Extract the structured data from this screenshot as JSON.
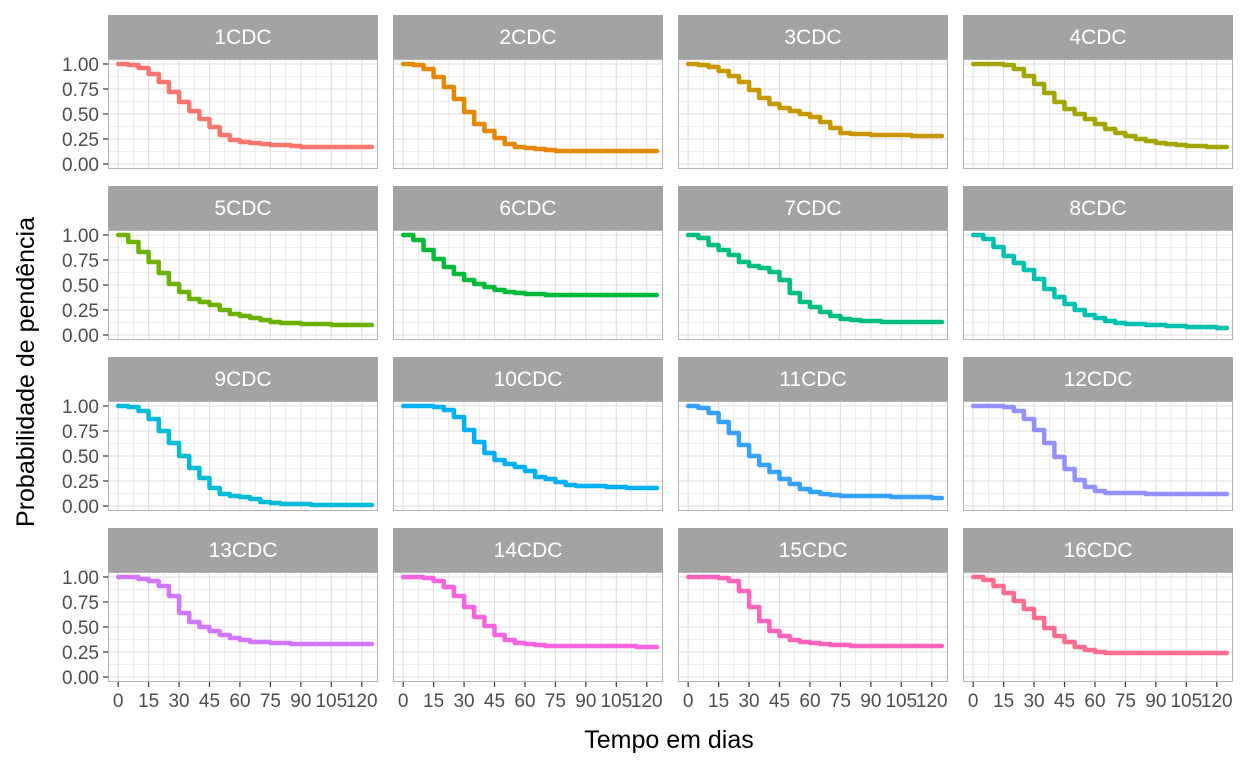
{
  "chart_data": {
    "type": "line",
    "xlabel": "Tempo em dias",
    "ylabel": "Probabilidade de pendência",
    "xlim": [
      -5,
      128
    ],
    "ylim": [
      -0.05,
      1.05
    ],
    "x_ticks": [
      0,
      15,
      30,
      45,
      60,
      75,
      90,
      105,
      120
    ],
    "x_tick_labels": [
      "0",
      "15",
      "30",
      "45",
      "60",
      "75",
      "90",
      "105",
      "120"
    ],
    "y_ticks": [
      0,
      0.25,
      0.5,
      0.75,
      1.0
    ],
    "y_tick_labels": [
      "0.00",
      "0.25",
      "0.50",
      "0.75",
      "1.00"
    ],
    "grid": true,
    "legend": "none",
    "panel_background": "#ffffff",
    "panel_border_color": "#b3b3b3",
    "strip_fill": "#a3a3a3",
    "grid_color": "#dedede",
    "panels": [
      {
        "name": "1CDC",
        "color": "#F8766D",
        "x": [
          0,
          5,
          10,
          15,
          20,
          25,
          30,
          35,
          40,
          45,
          50,
          55,
          60,
          65,
          70,
          75,
          80,
          85,
          90,
          95,
          100,
          105,
          110,
          115,
          120,
          125
        ],
        "y": [
          1.0,
          0.99,
          0.96,
          0.9,
          0.82,
          0.72,
          0.62,
          0.53,
          0.45,
          0.37,
          0.29,
          0.24,
          0.22,
          0.21,
          0.2,
          0.19,
          0.19,
          0.18,
          0.17,
          0.17,
          0.17,
          0.17,
          0.17,
          0.17,
          0.17,
          0.17
        ]
      },
      {
        "name": "2CDC",
        "color": "#E58700",
        "x": [
          0,
          5,
          10,
          15,
          20,
          25,
          30,
          35,
          40,
          45,
          50,
          55,
          60,
          65,
          70,
          75,
          80,
          85,
          90,
          95,
          100,
          105,
          110,
          115,
          120,
          125
        ],
        "y": [
          1.0,
          0.99,
          0.95,
          0.87,
          0.77,
          0.65,
          0.52,
          0.4,
          0.33,
          0.26,
          0.2,
          0.17,
          0.16,
          0.15,
          0.14,
          0.13,
          0.13,
          0.13,
          0.13,
          0.13,
          0.13,
          0.13,
          0.13,
          0.13,
          0.13,
          0.13
        ]
      },
      {
        "name": "3CDC",
        "color": "#C99800",
        "x": [
          0,
          5,
          10,
          15,
          20,
          25,
          30,
          35,
          40,
          45,
          50,
          55,
          60,
          65,
          70,
          75,
          80,
          85,
          90,
          95,
          100,
          105,
          110,
          115,
          120,
          125
        ],
        "y": [
          1.0,
          0.99,
          0.97,
          0.93,
          0.88,
          0.82,
          0.74,
          0.66,
          0.6,
          0.56,
          0.53,
          0.5,
          0.47,
          0.42,
          0.36,
          0.31,
          0.3,
          0.3,
          0.29,
          0.29,
          0.29,
          0.29,
          0.28,
          0.28,
          0.28,
          0.28
        ]
      },
      {
        "name": "4CDC",
        "color": "#A3A500",
        "x": [
          0,
          5,
          10,
          15,
          20,
          25,
          30,
          35,
          40,
          45,
          50,
          55,
          60,
          65,
          70,
          75,
          80,
          85,
          90,
          95,
          100,
          105,
          110,
          115,
          120,
          125
        ],
        "y": [
          1.0,
          1.0,
          1.0,
          0.99,
          0.95,
          0.88,
          0.8,
          0.71,
          0.62,
          0.55,
          0.5,
          0.45,
          0.4,
          0.35,
          0.31,
          0.28,
          0.25,
          0.23,
          0.21,
          0.2,
          0.19,
          0.18,
          0.18,
          0.17,
          0.17,
          0.17
        ]
      },
      {
        "name": "5CDC",
        "color": "#6BB100",
        "x": [
          0,
          5,
          10,
          15,
          20,
          25,
          30,
          35,
          40,
          45,
          50,
          55,
          60,
          65,
          70,
          75,
          80,
          85,
          90,
          95,
          100,
          105,
          110,
          115,
          120,
          125
        ],
        "y": [
          1.0,
          0.93,
          0.83,
          0.73,
          0.62,
          0.51,
          0.43,
          0.36,
          0.33,
          0.3,
          0.25,
          0.21,
          0.19,
          0.17,
          0.15,
          0.13,
          0.12,
          0.12,
          0.11,
          0.11,
          0.11,
          0.1,
          0.1,
          0.1,
          0.1,
          0.1
        ]
      },
      {
        "name": "6CDC",
        "color": "#00BA38",
        "x": [
          0,
          5,
          10,
          15,
          20,
          25,
          30,
          35,
          40,
          45,
          50,
          55,
          60,
          65,
          70,
          75,
          80,
          85,
          90,
          95,
          100,
          105,
          110,
          115,
          120,
          125
        ],
        "y": [
          1.0,
          0.95,
          0.85,
          0.76,
          0.68,
          0.61,
          0.55,
          0.51,
          0.48,
          0.45,
          0.43,
          0.42,
          0.41,
          0.41,
          0.4,
          0.4,
          0.4,
          0.4,
          0.4,
          0.4,
          0.4,
          0.4,
          0.4,
          0.4,
          0.4,
          0.4
        ]
      },
      {
        "name": "7CDC",
        "color": "#00BF7D",
        "x": [
          0,
          5,
          10,
          15,
          20,
          25,
          30,
          35,
          40,
          45,
          50,
          55,
          60,
          65,
          70,
          75,
          80,
          85,
          90,
          95,
          100,
          105,
          110,
          115,
          120,
          125
        ],
        "y": [
          1.0,
          0.97,
          0.9,
          0.85,
          0.8,
          0.73,
          0.69,
          0.67,
          0.63,
          0.55,
          0.42,
          0.33,
          0.28,
          0.23,
          0.19,
          0.16,
          0.15,
          0.14,
          0.14,
          0.13,
          0.13,
          0.13,
          0.13,
          0.13,
          0.13,
          0.13
        ]
      },
      {
        "name": "8CDC",
        "color": "#00C0AF",
        "x": [
          0,
          5,
          10,
          15,
          20,
          25,
          30,
          35,
          40,
          45,
          50,
          55,
          60,
          65,
          70,
          75,
          80,
          85,
          90,
          95,
          100,
          105,
          110,
          115,
          120,
          125
        ],
        "y": [
          1.0,
          0.96,
          0.88,
          0.79,
          0.72,
          0.65,
          0.56,
          0.46,
          0.38,
          0.31,
          0.25,
          0.2,
          0.17,
          0.14,
          0.12,
          0.11,
          0.11,
          0.1,
          0.1,
          0.09,
          0.09,
          0.08,
          0.08,
          0.08,
          0.07,
          0.07
        ]
      },
      {
        "name": "9CDC",
        "color": "#00BCD8",
        "x": [
          0,
          5,
          10,
          15,
          20,
          25,
          30,
          35,
          40,
          45,
          50,
          55,
          60,
          65,
          70,
          75,
          80,
          85,
          90,
          95,
          100,
          105,
          110,
          115,
          120,
          125
        ],
        "y": [
          1.0,
          0.99,
          0.95,
          0.87,
          0.75,
          0.63,
          0.5,
          0.38,
          0.28,
          0.18,
          0.12,
          0.1,
          0.09,
          0.07,
          0.04,
          0.03,
          0.02,
          0.02,
          0.02,
          0.01,
          0.01,
          0.01,
          0.01,
          0.01,
          0.01,
          0.01
        ]
      },
      {
        "name": "10CDC",
        "color": "#00B0F6",
        "x": [
          0,
          5,
          10,
          15,
          20,
          25,
          30,
          35,
          40,
          45,
          50,
          55,
          60,
          65,
          70,
          75,
          80,
          85,
          90,
          95,
          100,
          105,
          110,
          115,
          120,
          125
        ],
        "y": [
          1.0,
          1.0,
          1.0,
          0.99,
          0.96,
          0.89,
          0.76,
          0.64,
          0.53,
          0.46,
          0.42,
          0.39,
          0.35,
          0.29,
          0.27,
          0.24,
          0.21,
          0.2,
          0.2,
          0.2,
          0.19,
          0.19,
          0.18,
          0.18,
          0.18,
          0.18
        ]
      },
      {
        "name": "11CDC",
        "color": "#35A2FF",
        "x": [
          0,
          5,
          10,
          15,
          20,
          25,
          30,
          35,
          40,
          45,
          50,
          55,
          60,
          65,
          70,
          75,
          80,
          85,
          90,
          95,
          100,
          105,
          110,
          115,
          120,
          125
        ],
        "y": [
          1.0,
          0.98,
          0.93,
          0.84,
          0.73,
          0.61,
          0.5,
          0.41,
          0.34,
          0.27,
          0.22,
          0.17,
          0.14,
          0.12,
          0.11,
          0.1,
          0.1,
          0.1,
          0.1,
          0.1,
          0.09,
          0.09,
          0.09,
          0.09,
          0.08,
          0.08
        ]
      },
      {
        "name": "12CDC",
        "color": "#9590FF",
        "x": [
          0,
          5,
          10,
          15,
          20,
          25,
          30,
          35,
          40,
          45,
          50,
          55,
          60,
          65,
          70,
          75,
          80,
          85,
          90,
          95,
          100,
          105,
          110,
          115,
          120,
          125
        ],
        "y": [
          1.0,
          1.0,
          1.0,
          0.99,
          0.95,
          0.87,
          0.76,
          0.63,
          0.49,
          0.37,
          0.26,
          0.19,
          0.15,
          0.13,
          0.13,
          0.13,
          0.13,
          0.12,
          0.12,
          0.12,
          0.12,
          0.12,
          0.12,
          0.12,
          0.12,
          0.12
        ]
      },
      {
        "name": "13CDC",
        "color": "#D277FF",
        "x": [
          0,
          5,
          10,
          15,
          20,
          25,
          30,
          35,
          40,
          45,
          50,
          55,
          60,
          65,
          70,
          75,
          80,
          85,
          90,
          95,
          100,
          105,
          110,
          115,
          120,
          125
        ],
        "y": [
          1.0,
          1.0,
          0.98,
          0.96,
          0.91,
          0.81,
          0.64,
          0.55,
          0.5,
          0.46,
          0.42,
          0.39,
          0.37,
          0.35,
          0.35,
          0.34,
          0.34,
          0.33,
          0.33,
          0.33,
          0.33,
          0.33,
          0.33,
          0.33,
          0.33,
          0.33
        ]
      },
      {
        "name": "14CDC",
        "color": "#F763E0",
        "x": [
          0,
          5,
          10,
          15,
          20,
          25,
          30,
          35,
          40,
          45,
          50,
          55,
          60,
          65,
          70,
          75,
          80,
          85,
          90,
          95,
          100,
          105,
          110,
          115,
          120,
          125
        ],
        "y": [
          1.0,
          1.0,
          0.99,
          0.96,
          0.9,
          0.81,
          0.7,
          0.6,
          0.51,
          0.42,
          0.37,
          0.34,
          0.33,
          0.32,
          0.31,
          0.31,
          0.31,
          0.31,
          0.31,
          0.31,
          0.31,
          0.31,
          0.31,
          0.3,
          0.3,
          0.3
        ]
      },
      {
        "name": "15CDC",
        "color": "#FF62BC",
        "x": [
          0,
          5,
          10,
          15,
          20,
          25,
          30,
          35,
          40,
          45,
          50,
          55,
          60,
          65,
          70,
          75,
          80,
          85,
          90,
          95,
          100,
          105,
          110,
          115,
          120,
          125
        ],
        "y": [
          1.0,
          1.0,
          1.0,
          0.99,
          0.96,
          0.86,
          0.7,
          0.56,
          0.46,
          0.41,
          0.37,
          0.35,
          0.34,
          0.33,
          0.32,
          0.32,
          0.31,
          0.31,
          0.31,
          0.31,
          0.31,
          0.31,
          0.31,
          0.31,
          0.31,
          0.31
        ]
      },
      {
        "name": "16CDC",
        "color": "#FF6C91",
        "x": [
          0,
          5,
          10,
          15,
          20,
          25,
          30,
          35,
          40,
          45,
          50,
          55,
          60,
          65,
          70,
          75,
          80,
          85,
          90,
          95,
          100,
          105,
          110,
          115,
          120,
          125
        ],
        "y": [
          1.0,
          0.97,
          0.91,
          0.84,
          0.76,
          0.68,
          0.59,
          0.49,
          0.41,
          0.35,
          0.3,
          0.27,
          0.25,
          0.24,
          0.24,
          0.24,
          0.24,
          0.24,
          0.24,
          0.24,
          0.24,
          0.24,
          0.24,
          0.24,
          0.24,
          0.24
        ]
      }
    ]
  }
}
